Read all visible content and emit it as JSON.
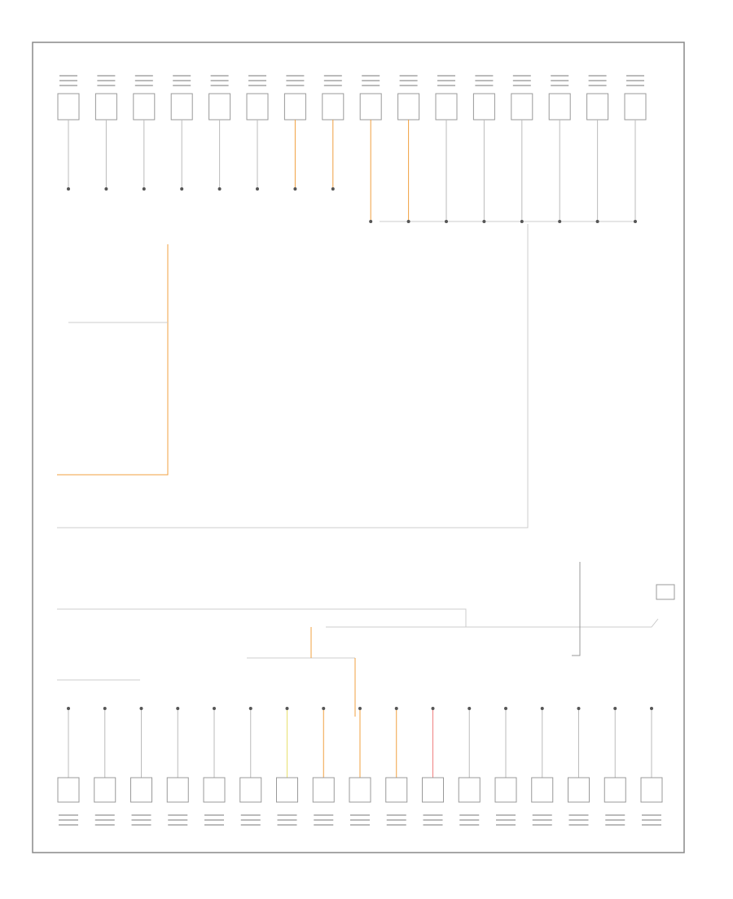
{
  "diagram": {
    "top_connector_wire_colors": [
      "#bbb",
      "#bbb",
      "#bbb",
      "#bbb",
      "#bbb",
      "#bbb",
      "#f0a040",
      "#f0a040",
      "#f0a040",
      "#f0a040",
      "#bbb",
      "#bbb",
      "#bbb",
      "#bbb",
      "#bbb",
      "#bbb"
    ],
    "bottom_connector_wire_colors": [
      "#bbb",
      "#bbb",
      "#bbb",
      "#bbb",
      "#bbb",
      "#bbb",
      "#e8e070",
      "#f0a040",
      "#f0a040",
      "#f0a040",
      "#f08080",
      "#bbb",
      "#bbb",
      "#bbb",
      "#bbb",
      "#bbb",
      "#bbb"
    ]
  }
}
